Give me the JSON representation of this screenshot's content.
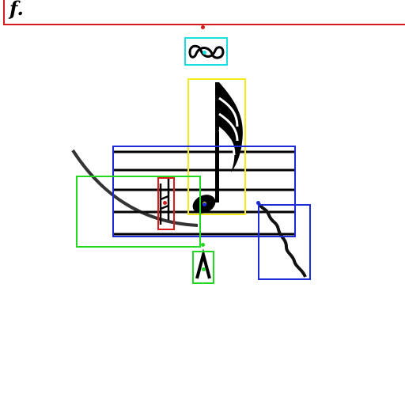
{
  "header": {
    "fragment_text": "f."
  },
  "colors": {
    "red": "#d81b1b",
    "cyan": "#18e0e0",
    "yellow": "#f2ec1a",
    "blue": "#1c2bd6",
    "green": "#22d822",
    "ink": "#000000"
  },
  "annotations": [
    {
      "label": "dynamics-region",
      "color": "red"
    },
    {
      "label": "turn-ornament",
      "color": "cyan"
    },
    {
      "label": "sixteenth-note",
      "color": "yellow"
    },
    {
      "label": "staff",
      "color": "blue"
    },
    {
      "label": "slur",
      "color": "green"
    },
    {
      "label": "natural-accidental",
      "color": "red"
    },
    {
      "label": "marcato-accent",
      "color": "green"
    },
    {
      "label": "wavy-line",
      "color": "blue"
    }
  ]
}
